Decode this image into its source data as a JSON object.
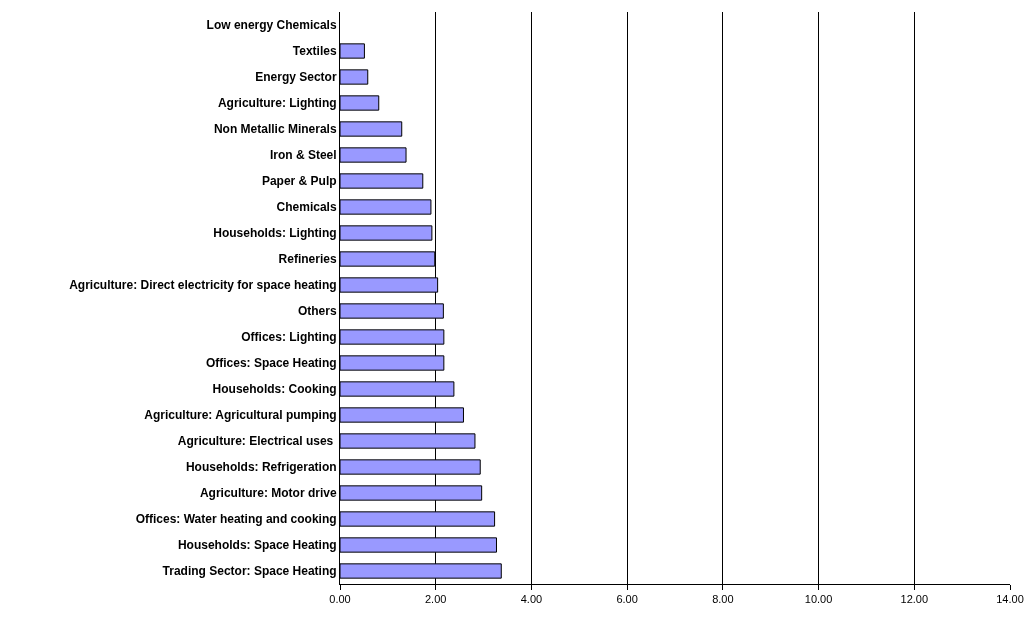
{
  "chart_data": {
    "type": "bar",
    "orientation": "horizontal",
    "categories": [
      "Low energy Chemicals",
      "Textiles",
      "Energy Sector",
      "Agriculture: Lighting",
      "Non Metallic Minerals",
      "Iron & Steel",
      "Paper & Pulp",
      "Chemicals",
      "Households: Lighting",
      "Refineries",
      "Agriculture: Direct electricity for space heating",
      "Others",
      "Offices: Lighting",
      "Offices: Space Heating",
      "Households: Cooking",
      "Agriculture: Agricultural pumping",
      "Agriculture: Electrical uses ",
      "Households: Refrigeration",
      "Agriculture: Motor drive",
      "Offices: Water heating and cooking",
      "Households: Space Heating",
      "Trading Sector: Space Heating"
    ],
    "values": [
      null,
      0.51,
      0.58,
      0.81,
      1.29,
      1.38,
      1.73,
      1.9,
      1.92,
      1.98,
      2.04,
      2.16,
      2.17,
      2.17,
      2.38,
      2.58,
      2.82,
      2.93,
      2.96,
      3.23,
      3.27,
      3.37
    ],
    "color": "#9999ff",
    "xlim": [
      0,
      14
    ],
    "xticks": [
      {
        "value": 0,
        "label": "0.00"
      },
      {
        "value": 2,
        "label": "2.00"
      },
      {
        "value": 4,
        "label": "4.00"
      },
      {
        "value": 6,
        "label": "6.00"
      },
      {
        "value": 8,
        "label": "8.00"
      },
      {
        "value": 10,
        "label": "10.00"
      },
      {
        "value": 12,
        "label": "12.00"
      },
      {
        "value": 14,
        "label": "14.00"
      }
    ],
    "grid": "x",
    "legend": false
  }
}
